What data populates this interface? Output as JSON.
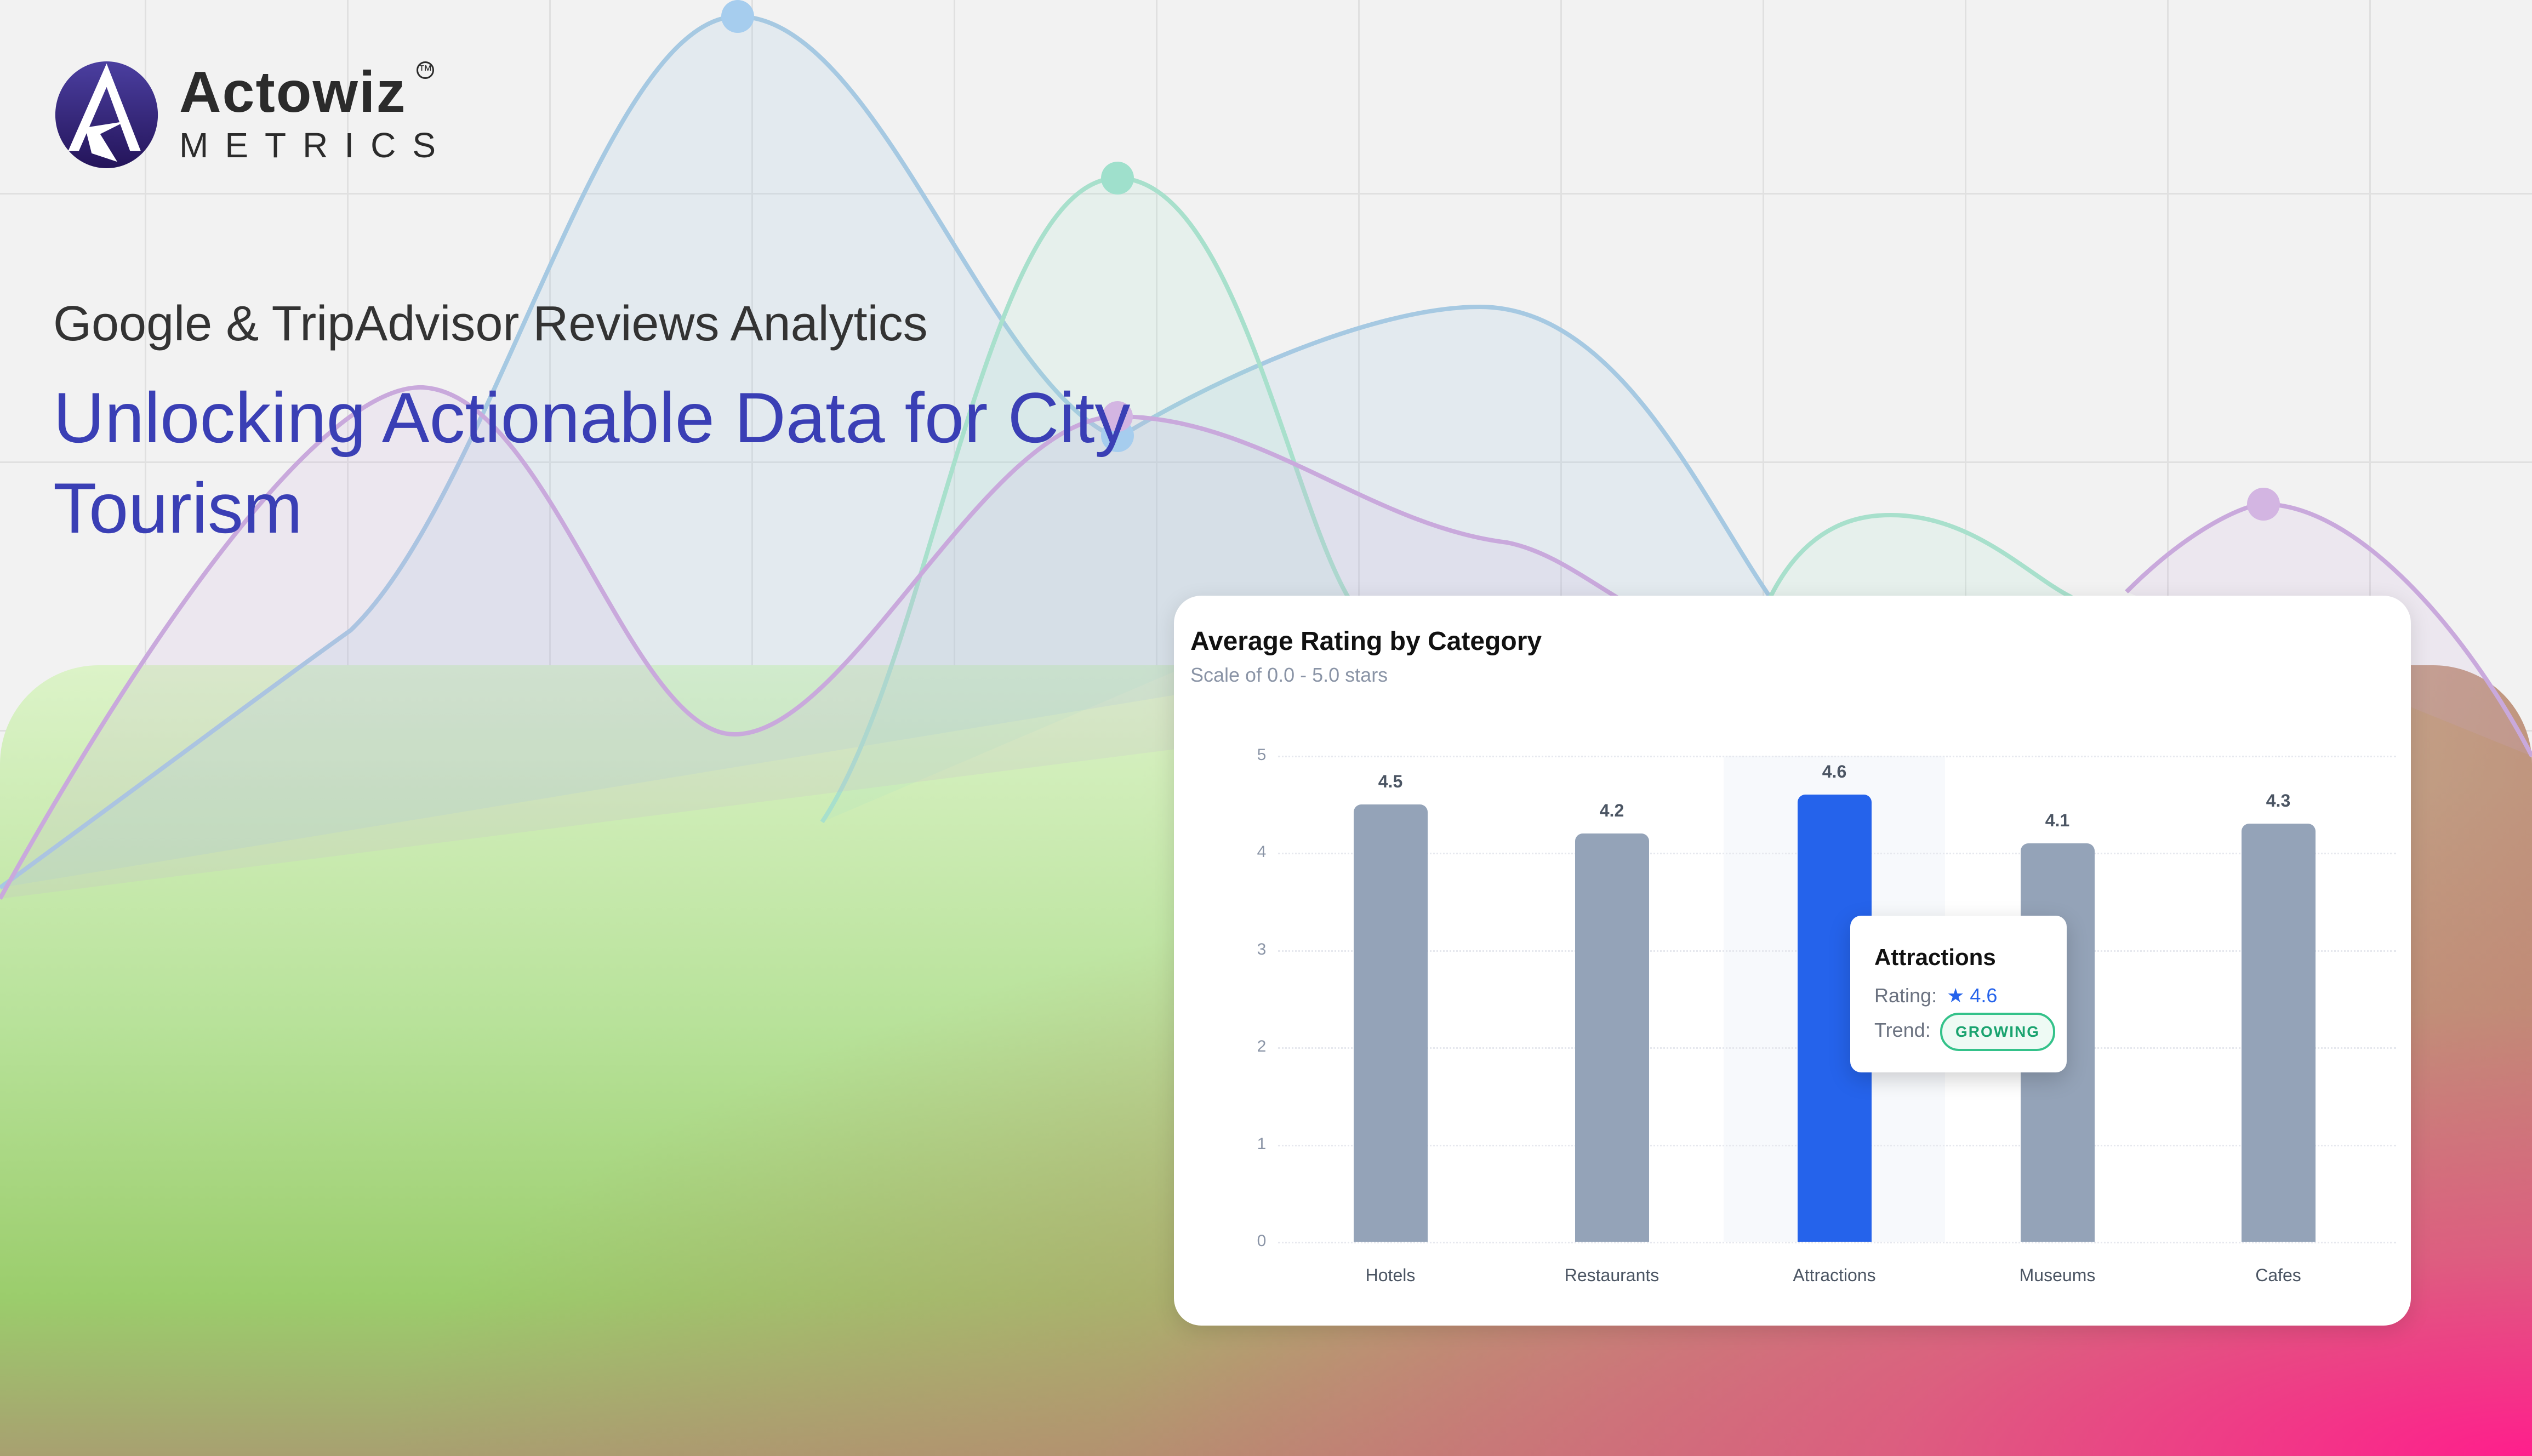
{
  "brand": {
    "name": "Actowiz",
    "sub": "METRICS",
    "tm": "TM"
  },
  "hero": {
    "subtitle": "Google & TripAdvisor Reviews Analytics",
    "title": "Unlocking Actionable Data for City Tourism"
  },
  "colors": {
    "accent": "#3a3fb5",
    "bar": "#94a3b8",
    "bar_active": "#2563eb",
    "trend": "#1aa36f"
  },
  "chart_data": {
    "type": "bar",
    "title": "Average Rating by Category",
    "subtitle": "Scale of 0.0 - 5.0 stars",
    "categories": [
      "Hotels",
      "Restaurants",
      "Attractions",
      "Museums",
      "Cafes"
    ],
    "values": [
      4.5,
      4.2,
      4.6,
      4.1,
      4.3
    ],
    "value_labels": [
      "4.5",
      "4.2",
      "4.6",
      "4.1",
      "4.3"
    ],
    "ylim": [
      0,
      5
    ],
    "yticks": [
      "0",
      "1",
      "2",
      "3",
      "4",
      "5"
    ],
    "grid": true,
    "highlighted": "Attractions",
    "tooltip": {
      "title": "Attractions",
      "rating_label": "Rating:",
      "rating_value": "★ 4.6",
      "trend_label": "Trend:",
      "trend_value": "GROWING"
    }
  }
}
